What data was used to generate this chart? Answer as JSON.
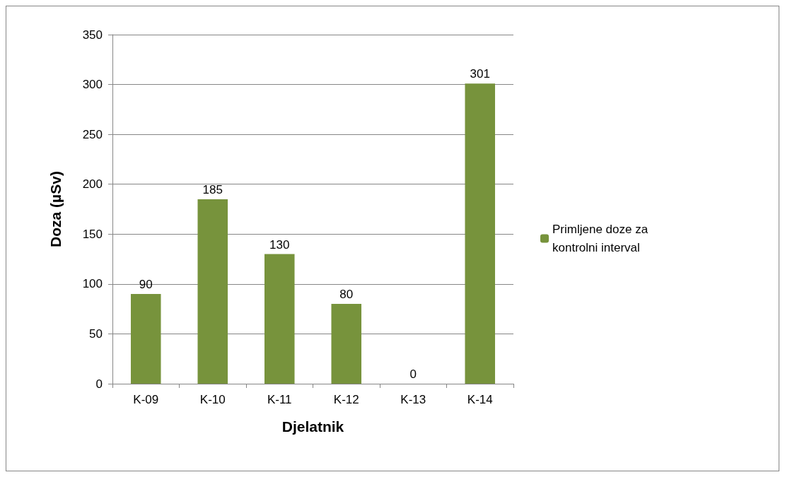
{
  "chart_data": {
    "type": "bar",
    "xlabel": "Djelatnik",
    "ylabel": "Doza (µSv)",
    "categories": [
      "K-09",
      "K-10",
      "K-11",
      "K-12",
      "K-13",
      "K-14"
    ],
    "series": [
      {
        "name": "Primljene doze za kontrolni interval",
        "color": "#77933c",
        "values": [
          90,
          185,
          130,
          80,
          0,
          301
        ]
      }
    ],
    "ylim": [
      0,
      350
    ],
    "yticks": [
      0,
      50,
      100,
      150,
      200,
      250,
      300,
      350
    ],
    "grid": "y",
    "legend": "right",
    "data_labels": true
  }
}
